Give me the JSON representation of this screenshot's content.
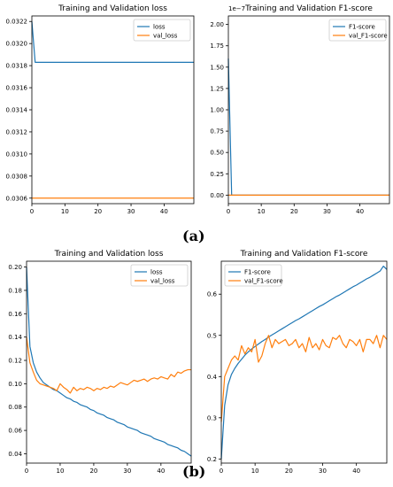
{
  "labels": {
    "a": "(a)",
    "b": "(b)"
  },
  "colors": {
    "blue": "#1f77b4",
    "orange": "#ff7f0e"
  },
  "chart_data": [
    {
      "type": "line",
      "title": "Training and Validation loss",
      "xlim": [
        0,
        49
      ],
      "ylim": [
        0.03055,
        0.03225
      ],
      "xticks": [
        0,
        10,
        20,
        30,
        40
      ],
      "yticks": [
        0.0306,
        0.0308,
        0.031,
        0.0312,
        0.0314,
        0.0316,
        0.0318,
        0.032,
        0.0322
      ],
      "ytick_labels": [
        "0.0306",
        "0.0308",
        "0.0310",
        "0.0312",
        "0.0314",
        "0.0316",
        "0.0318",
        "0.0320",
        "0.0322"
      ],
      "legend": "upper right",
      "series": [
        {
          "name": "loss",
          "color": "#1f77b4",
          "x": [
            0,
            1,
            2,
            49
          ],
          "y": [
            0.0322,
            0.03183,
            0.03183,
            0.03183
          ]
        },
        {
          "name": "val_loss",
          "color": "#ff7f0e",
          "x": [
            0,
            49
          ],
          "y": [
            0.0306,
            0.0306
          ]
        }
      ]
    },
    {
      "type": "line",
      "title": "Training and Validation F1-score",
      "offset_text": "1e−7",
      "xlim": [
        0,
        49
      ],
      "ylim": [
        -0.1,
        2.1
      ],
      "xticks": [
        0,
        10,
        20,
        30,
        40
      ],
      "yticks": [
        0,
        0.25,
        0.5,
        0.75,
        1.0,
        1.25,
        1.5,
        1.75,
        2.0
      ],
      "ytick_labels": [
        "0.00",
        "0.25",
        "0.50",
        "0.75",
        "1.00",
        "1.25",
        "1.50",
        "1.75",
        "2.00"
      ],
      "legend": "upper right",
      "series": [
        {
          "name": "F1-score",
          "color": "#1f77b4",
          "x": [
            0,
            1,
            2,
            49
          ],
          "y": [
            1.6,
            0,
            0,
            0
          ]
        },
        {
          "name": "val_F1-score",
          "color": "#ff7f0e",
          "x": [
            0,
            49
          ],
          "y": [
            0,
            0
          ]
        }
      ]
    },
    {
      "type": "line",
      "title": "Training and Validation loss",
      "xlim": [
        0,
        49
      ],
      "ylim": [
        0.032,
        0.205
      ],
      "xticks": [
        0,
        10,
        20,
        30,
        40
      ],
      "yticks": [
        0.04,
        0.06,
        0.08,
        0.1,
        0.12,
        0.14,
        0.16,
        0.18,
        0.2
      ],
      "ytick_labels": [
        "0.04",
        "0.06",
        "0.08",
        "0.10",
        "0.12",
        "0.14",
        "0.16",
        "0.18",
        "0.20"
      ],
      "legend": "upper right",
      "series": [
        {
          "name": "loss",
          "color": "#1f77b4",
          "x": [
            0,
            1,
            2,
            3,
            4,
            5,
            6,
            7,
            8,
            9,
            10,
            11,
            12,
            13,
            14,
            15,
            16,
            17,
            18,
            19,
            20,
            21,
            22,
            23,
            24,
            25,
            26,
            27,
            28,
            29,
            30,
            31,
            32,
            33,
            34,
            35,
            36,
            37,
            38,
            39,
            40,
            41,
            42,
            43,
            44,
            45,
            46,
            47,
            48,
            49
          ],
          "y": [
            0.2,
            0.132,
            0.118,
            0.11,
            0.105,
            0.101,
            0.099,
            0.097,
            0.095,
            0.094,
            0.092,
            0.09,
            0.088,
            0.087,
            0.085,
            0.084,
            0.082,
            0.081,
            0.08,
            0.078,
            0.077,
            0.075,
            0.074,
            0.073,
            0.071,
            0.07,
            0.069,
            0.067,
            0.066,
            0.065,
            0.063,
            0.062,
            0.061,
            0.06,
            0.058,
            0.057,
            0.056,
            0.055,
            0.053,
            0.052,
            0.051,
            0.05,
            0.048,
            0.047,
            0.046,
            0.045,
            0.043,
            0.042,
            0.04,
            0.038
          ]
        },
        {
          "name": "val_loss",
          "color": "#ff7f0e",
          "x": [
            0,
            1,
            2,
            3,
            4,
            5,
            6,
            7,
            8,
            9,
            10,
            11,
            12,
            13,
            14,
            15,
            16,
            17,
            18,
            19,
            20,
            21,
            22,
            23,
            24,
            25,
            26,
            27,
            28,
            29,
            30,
            31,
            32,
            33,
            34,
            35,
            36,
            37,
            38,
            39,
            40,
            41,
            42,
            43,
            44,
            45,
            46,
            47,
            48,
            49
          ],
          "y": [
            0.14,
            0.118,
            0.11,
            0.103,
            0.1,
            0.099,
            0.098,
            0.097,
            0.096,
            0.094,
            0.1,
            0.097,
            0.095,
            0.092,
            0.097,
            0.094,
            0.096,
            0.095,
            0.097,
            0.096,
            0.094,
            0.096,
            0.095,
            0.097,
            0.096,
            0.098,
            0.097,
            0.099,
            0.101,
            0.1,
            0.099,
            0.101,
            0.103,
            0.102,
            0.103,
            0.104,
            0.102,
            0.104,
            0.105,
            0.104,
            0.106,
            0.105,
            0.104,
            0.108,
            0.106,
            0.11,
            0.109,
            0.111,
            0.112,
            0.112
          ]
        }
      ]
    },
    {
      "type": "line",
      "title": "Training and Validation F1-score",
      "xlim": [
        0,
        49
      ],
      "ylim": [
        0.19,
        0.68
      ],
      "xticks": [
        0,
        10,
        20,
        30,
        40
      ],
      "yticks": [
        0.2,
        0.3,
        0.4,
        0.5,
        0.6
      ],
      "ytick_labels": [
        "0.2",
        "0.3",
        "0.4",
        "0.5",
        "0.6"
      ],
      "legend": "upper left",
      "series": [
        {
          "name": "F1-score",
          "color": "#1f77b4",
          "x": [
            0,
            1,
            2,
            3,
            4,
            5,
            6,
            7,
            8,
            9,
            10,
            11,
            12,
            13,
            14,
            15,
            16,
            17,
            18,
            19,
            20,
            21,
            22,
            23,
            24,
            25,
            26,
            27,
            28,
            29,
            30,
            31,
            32,
            33,
            34,
            35,
            36,
            37,
            38,
            39,
            40,
            41,
            42,
            43,
            44,
            45,
            46,
            47,
            48,
            49
          ],
          "y": [
            0.2,
            0.33,
            0.38,
            0.405,
            0.42,
            0.432,
            0.442,
            0.452,
            0.46,
            0.467,
            0.473,
            0.479,
            0.485,
            0.49,
            0.496,
            0.501,
            0.506,
            0.511,
            0.516,
            0.521,
            0.526,
            0.531,
            0.536,
            0.54,
            0.545,
            0.55,
            0.555,
            0.56,
            0.565,
            0.57,
            0.574,
            0.579,
            0.584,
            0.589,
            0.594,
            0.598,
            0.603,
            0.608,
            0.613,
            0.618,
            0.622,
            0.627,
            0.632,
            0.637,
            0.641,
            0.646,
            0.651,
            0.656,
            0.668,
            0.66
          ]
        },
        {
          "name": "val_F1-score",
          "color": "#ff7f0e",
          "x": [
            0,
            1,
            2,
            3,
            4,
            5,
            6,
            7,
            8,
            9,
            10,
            11,
            12,
            13,
            14,
            15,
            16,
            17,
            18,
            19,
            20,
            21,
            22,
            23,
            24,
            25,
            26,
            27,
            28,
            29,
            30,
            31,
            32,
            33,
            34,
            35,
            36,
            37,
            38,
            39,
            40,
            41,
            42,
            43,
            44,
            45,
            46,
            47,
            48,
            49
          ],
          "y": [
            0.29,
            0.4,
            0.42,
            0.44,
            0.45,
            0.44,
            0.475,
            0.455,
            0.47,
            0.46,
            0.49,
            0.435,
            0.45,
            0.48,
            0.5,
            0.47,
            0.49,
            0.48,
            0.485,
            0.49,
            0.475,
            0.48,
            0.49,
            0.47,
            0.48,
            0.46,
            0.495,
            0.47,
            0.48,
            0.465,
            0.49,
            0.475,
            0.47,
            0.495,
            0.49,
            0.5,
            0.48,
            0.47,
            0.49,
            0.485,
            0.475,
            0.49,
            0.46,
            0.49,
            0.49,
            0.48,
            0.5,
            0.47,
            0.5,
            0.49
          ]
        }
      ]
    }
  ]
}
